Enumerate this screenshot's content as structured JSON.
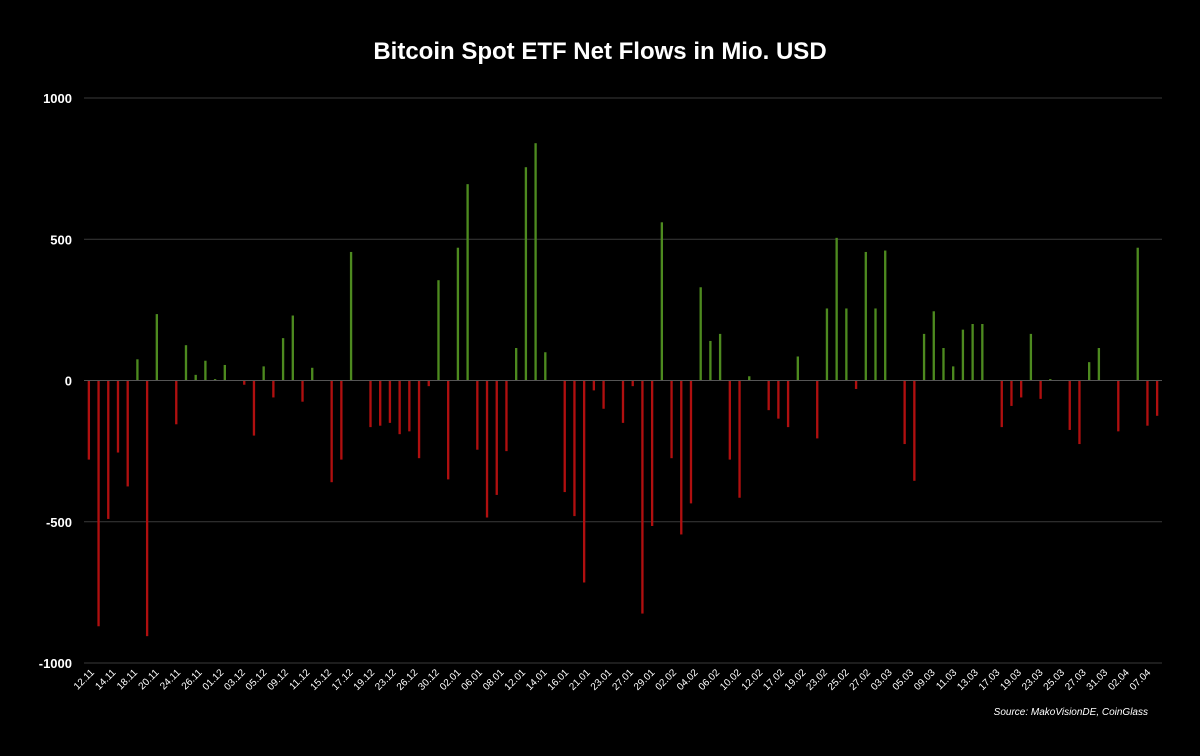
{
  "chart_data": {
    "type": "bar",
    "title": "Bitcoin Spot ETF Net Flows in Mio. USD",
    "source": "Source: MakoVisionDE, CoinGlass",
    "ylim": [
      -1000,
      1000
    ],
    "yticks": [
      1000,
      500,
      0,
      -500,
      -1000
    ],
    "grid": true,
    "colors": {
      "positive": "#4d8a1f",
      "negative": "#b00f0f",
      "grid": "#3a3a3a",
      "background": "#000000",
      "text": "#ffffff"
    },
    "xtick_labels": [
      "12.11",
      "14.11",
      "18.11",
      "20.11",
      "24.11",
      "26.11",
      "01.12",
      "03.12",
      "05.12",
      "09.12",
      "11.12",
      "15.12",
      "17.12",
      "19.12",
      "23.12",
      "26.12",
      "30.12",
      "02.01",
      "06.01",
      "08.01",
      "12.01",
      "14.01",
      "16.01",
      "21.01",
      "23.01",
      "27.01",
      "29.01",
      "02.02",
      "04.02",
      "06.02",
      "10.02",
      "12.02",
      "17.02",
      "19.02",
      "23.02",
      "25.02",
      "27.02",
      "03.03",
      "05.03",
      "09.03",
      "11.03",
      "13.03",
      "17.03",
      "19.03",
      "23.03",
      "25.03",
      "27.03",
      "31.03",
      "02.04",
      "07.04"
    ],
    "values": [
      -280,
      -870,
      -490,
      -255,
      -375,
      75,
      -905,
      235,
      0,
      -155,
      125,
      20,
      70,
      5,
      55,
      0,
      -15,
      -195,
      50,
      -60,
      150,
      230,
      -75,
      45,
      0,
      -360,
      -280,
      455,
      0,
      -165,
      -160,
      -150,
      -190,
      -180,
      -275,
      -20,
      355,
      -350,
      470,
      695,
      -245,
      -485,
      -405,
      -250,
      115,
      755,
      840,
      100,
      0,
      -395,
      -480,
      -715,
      -35,
      -100,
      0,
      -150,
      -20,
      -825,
      -515,
      560,
      -275,
      -545,
      -435,
      330,
      140,
      165,
      -280,
      -415,
      15,
      0,
      -105,
      -135,
      -165,
      85,
      0,
      -205,
      255,
      505,
      255,
      -30,
      455,
      255,
      460,
      0,
      -225,
      -355,
      165,
      245,
      115,
      50,
      180,
      200,
      200,
      0,
      -165,
      -90,
      -60,
      165,
      -65,
      5,
      0,
      -175,
      -225,
      65,
      115,
      0,
      -180,
      0,
      470,
      -160,
      -125
    ]
  }
}
